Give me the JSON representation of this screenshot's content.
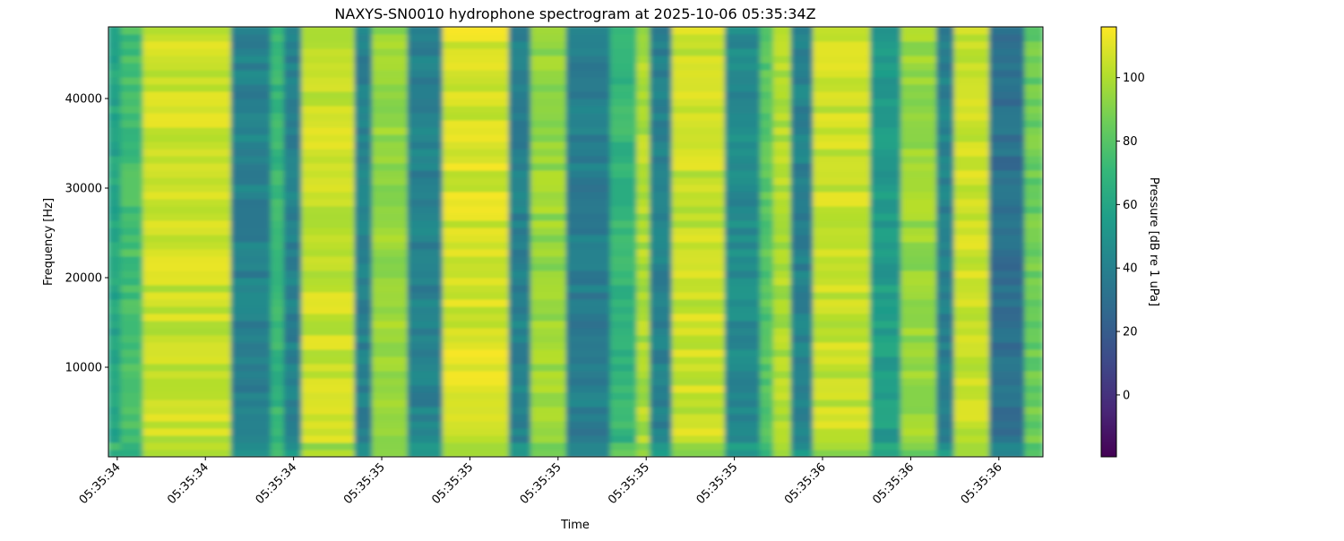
{
  "chart_data": {
    "type": "heatmap",
    "title": "NAXYS-SN0010 hydrophone spectrogram at 2025-10-06 05:35:34Z",
    "xlabel": "Time",
    "ylabel": "Frequency [Hz]",
    "colorbar_label": "Pressure [dB re 1 uPa]",
    "colormap": "viridis",
    "clim": [
      -19.5,
      116
    ],
    "colorbar_ticks": [
      0,
      20,
      40,
      60,
      80,
      100
    ],
    "xlim_seconds_past_05_35": [
      34.38,
      36.5
    ],
    "ylim": [
      0,
      48000
    ],
    "yticks": [
      10000,
      20000,
      30000,
      40000
    ],
    "xticks_seconds_past_05_35": [
      34.4,
      34.6,
      34.8,
      35.0,
      35.2,
      35.4,
      35.6,
      35.8,
      36.0,
      36.2,
      36.4
    ],
    "xtick_labels": [
      "05:35:34",
      "05:35:34",
      "05:35:34",
      "05:35:35",
      "05:35:35",
      "05:35:35",
      "05:35:35",
      "05:35:35",
      "05:35:36",
      "05:35:36",
      "05:35:36"
    ],
    "segments_note_units": "seconds past 05:35, dB",
    "segments": [
      {
        "t0": 34.38,
        "t1": 34.41,
        "level": 60
      },
      {
        "t0": 34.41,
        "t1": 34.46,
        "level": 75
      },
      {
        "t0": 34.46,
        "t1": 34.66,
        "level": 105
      },
      {
        "t0": 34.66,
        "t1": 34.75,
        "level": 40
      },
      {
        "t0": 34.75,
        "t1": 34.78,
        "level": 70
      },
      {
        "t0": 34.78,
        "t1": 34.82,
        "level": 40
      },
      {
        "t0": 34.82,
        "t1": 34.94,
        "level": 105
      },
      {
        "t0": 34.94,
        "t1": 34.98,
        "level": 40
      },
      {
        "t0": 34.98,
        "t1": 35.06,
        "level": 95
      },
      {
        "t0": 35.06,
        "t1": 35.14,
        "level": 40
      },
      {
        "t0": 35.14,
        "t1": 35.29,
        "level": 108
      },
      {
        "t0": 35.29,
        "t1": 35.34,
        "level": 40
      },
      {
        "t0": 35.34,
        "t1": 35.42,
        "level": 95
      },
      {
        "t0": 35.42,
        "t1": 35.52,
        "level": 38
      },
      {
        "t0": 35.52,
        "t1": 35.58,
        "level": 70
      },
      {
        "t0": 35.58,
        "t1": 35.61,
        "level": 100
      },
      {
        "t0": 35.61,
        "t1": 35.66,
        "level": 40
      },
      {
        "t0": 35.66,
        "t1": 35.78,
        "level": 105
      },
      {
        "t0": 35.78,
        "t1": 35.86,
        "level": 45
      },
      {
        "t0": 35.86,
        "t1": 35.89,
        "level": 80
      },
      {
        "t0": 35.89,
        "t1": 35.93,
        "level": 100
      },
      {
        "t0": 35.93,
        "t1": 35.98,
        "level": 40
      },
      {
        "t0": 35.98,
        "t1": 36.11,
        "level": 105
      },
      {
        "t0": 36.11,
        "t1": 36.18,
        "level": 55
      },
      {
        "t0": 36.18,
        "t1": 36.26,
        "level": 95
      },
      {
        "t0": 36.26,
        "t1": 36.3,
        "level": 40
      },
      {
        "t0": 36.3,
        "t1": 36.38,
        "level": 105
      },
      {
        "t0": 36.38,
        "t1": 36.46,
        "level": 30
      },
      {
        "t0": 36.46,
        "t1": 36.5,
        "level": 85
      }
    ]
  }
}
